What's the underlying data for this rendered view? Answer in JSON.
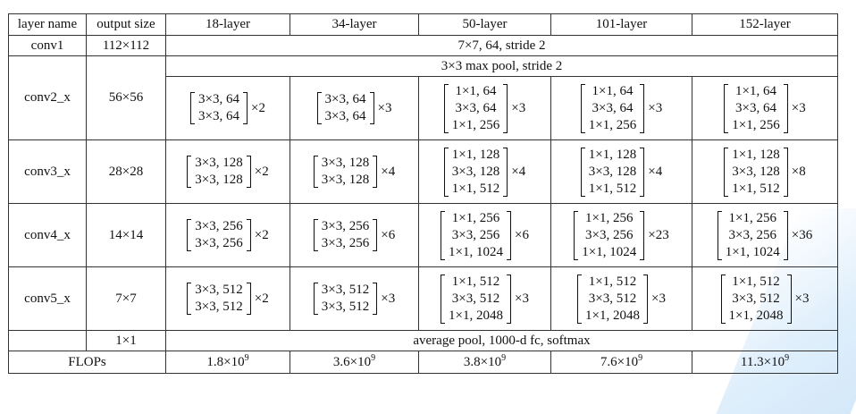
{
  "headers": [
    "layer name",
    "output size",
    "18-layer",
    "34-layer",
    "50-layer",
    "101-layer",
    "152-layer"
  ],
  "conv1": {
    "name": "conv1",
    "size": "112×112",
    "spec": "7×7, 64, stride 2"
  },
  "pool": {
    "spec": "3×3 max pool, stride 2"
  },
  "blocks": [
    {
      "name": "conv2_x",
      "size": "56×56",
      "cells": [
        {
          "lines": [
            "3×3, 64",
            "3×3, 64"
          ],
          "rep": "×2"
        },
        {
          "lines": [
            "3×3, 64",
            "3×3, 64"
          ],
          "rep": "×3"
        },
        {
          "lines": [
            "1×1, 64",
            "3×3, 64",
            "1×1, 256"
          ],
          "rep": "×3"
        },
        {
          "lines": [
            "1×1, 64",
            "3×3, 64",
            "1×1, 256"
          ],
          "rep": "×3"
        },
        {
          "lines": [
            "1×1, 64",
            "3×3, 64",
            "1×1, 256"
          ],
          "rep": "×3"
        }
      ]
    },
    {
      "name": "conv3_x",
      "size": "28×28",
      "cells": [
        {
          "lines": [
            "3×3, 128",
            "3×3, 128"
          ],
          "rep": "×2"
        },
        {
          "lines": [
            "3×3, 128",
            "3×3, 128"
          ],
          "rep": "×4"
        },
        {
          "lines": [
            "1×1, 128",
            "3×3, 128",
            "1×1, 512"
          ],
          "rep": "×4"
        },
        {
          "lines": [
            "1×1, 128",
            "3×3, 128",
            "1×1, 512"
          ],
          "rep": "×4"
        },
        {
          "lines": [
            "1×1, 128",
            "3×3, 128",
            "1×1, 512"
          ],
          "rep": "×8"
        }
      ]
    },
    {
      "name": "conv4_x",
      "size": "14×14",
      "cells": [
        {
          "lines": [
            "3×3, 256",
            "3×3, 256"
          ],
          "rep": "×2"
        },
        {
          "lines": [
            "3×3, 256",
            "3×3, 256"
          ],
          "rep": "×6"
        },
        {
          "lines": [
            "1×1, 256",
            "3×3, 256",
            "1×1, 1024"
          ],
          "rep": "×6"
        },
        {
          "lines": [
            "1×1, 256",
            "3×3, 256",
            "1×1, 1024"
          ],
          "rep": "×23"
        },
        {
          "lines": [
            "1×1, 256",
            "3×3, 256",
            "1×1, 1024"
          ],
          "rep": "×36"
        }
      ]
    },
    {
      "name": "conv5_x",
      "size": "7×7",
      "cells": [
        {
          "lines": [
            "3×3, 512",
            "3×3, 512"
          ],
          "rep": "×2"
        },
        {
          "lines": [
            "3×3, 512",
            "3×3, 512"
          ],
          "rep": "×3"
        },
        {
          "lines": [
            "1×1, 512",
            "3×3, 512",
            "1×1, 2048"
          ],
          "rep": "×3"
        },
        {
          "lines": [
            "1×1, 512",
            "3×3, 512",
            "1×1, 2048"
          ],
          "rep": "×3"
        },
        {
          "lines": [
            "1×1, 512",
            "3×3, 512",
            "1×1, 2048"
          ],
          "rep": "×3"
        }
      ]
    }
  ],
  "avg": {
    "size": "1×1",
    "spec": "average pool, 1000-d fc, softmax"
  },
  "flops": {
    "label": "FLOPs",
    "values": [
      {
        "mant": "1.8×10",
        "exp": "9"
      },
      {
        "mant": "3.6×10",
        "exp": "9"
      },
      {
        "mant": "3.8×10",
        "exp": "9"
      },
      {
        "mant": "7.6×10",
        "exp": "9"
      },
      {
        "mant": "11.3×10",
        "exp": "9"
      }
    ]
  }
}
